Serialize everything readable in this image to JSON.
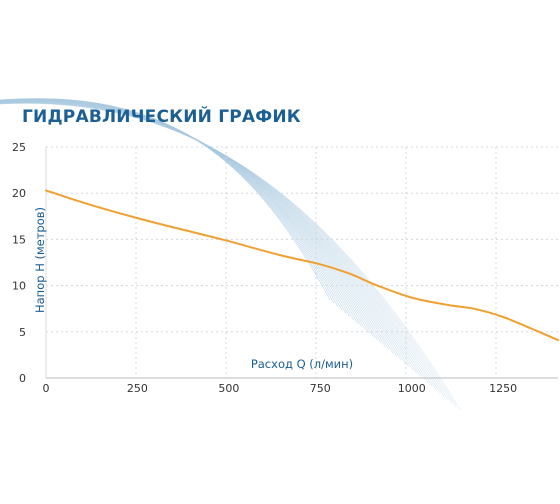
{
  "chart_data": {
    "type": "line",
    "title": "ГИДРАВЛИЧЕСКИЙ ГРАФИК",
    "xlabel": "Расход Q (л/мин)",
    "ylabel": "Напор Н (метров)",
    "xlim": [
      0,
      1400
    ],
    "ylim": [
      0,
      25
    ],
    "x_ticks": [
      "0",
      "250",
      "500",
      "750",
      "1000",
      "1250"
    ],
    "y_ticks": [
      "0",
      "5",
      "10",
      "15",
      "20",
      "25"
    ],
    "grid": true,
    "legend": "none",
    "series": [
      {
        "x": [
          0,
          100,
          250,
          400,
          500,
          640,
          750,
          830,
          900,
          1000,
          1100,
          1170,
          1250,
          1330,
          1400
        ],
        "y": [
          20.3,
          19.0,
          17.3,
          15.8,
          14.8,
          13.3,
          12.3,
          11.3,
          10.1,
          8.7,
          7.9,
          7.5,
          6.6,
          5.3,
          4.1
        ]
      }
    ]
  },
  "colors": {
    "title": "#1b5f93",
    "axis_text": "#1b5f93",
    "tick_text": "#333333",
    "grid": "#cfd8e0",
    "line": "#f0a030",
    "decoration": "#a9c9e0"
  }
}
